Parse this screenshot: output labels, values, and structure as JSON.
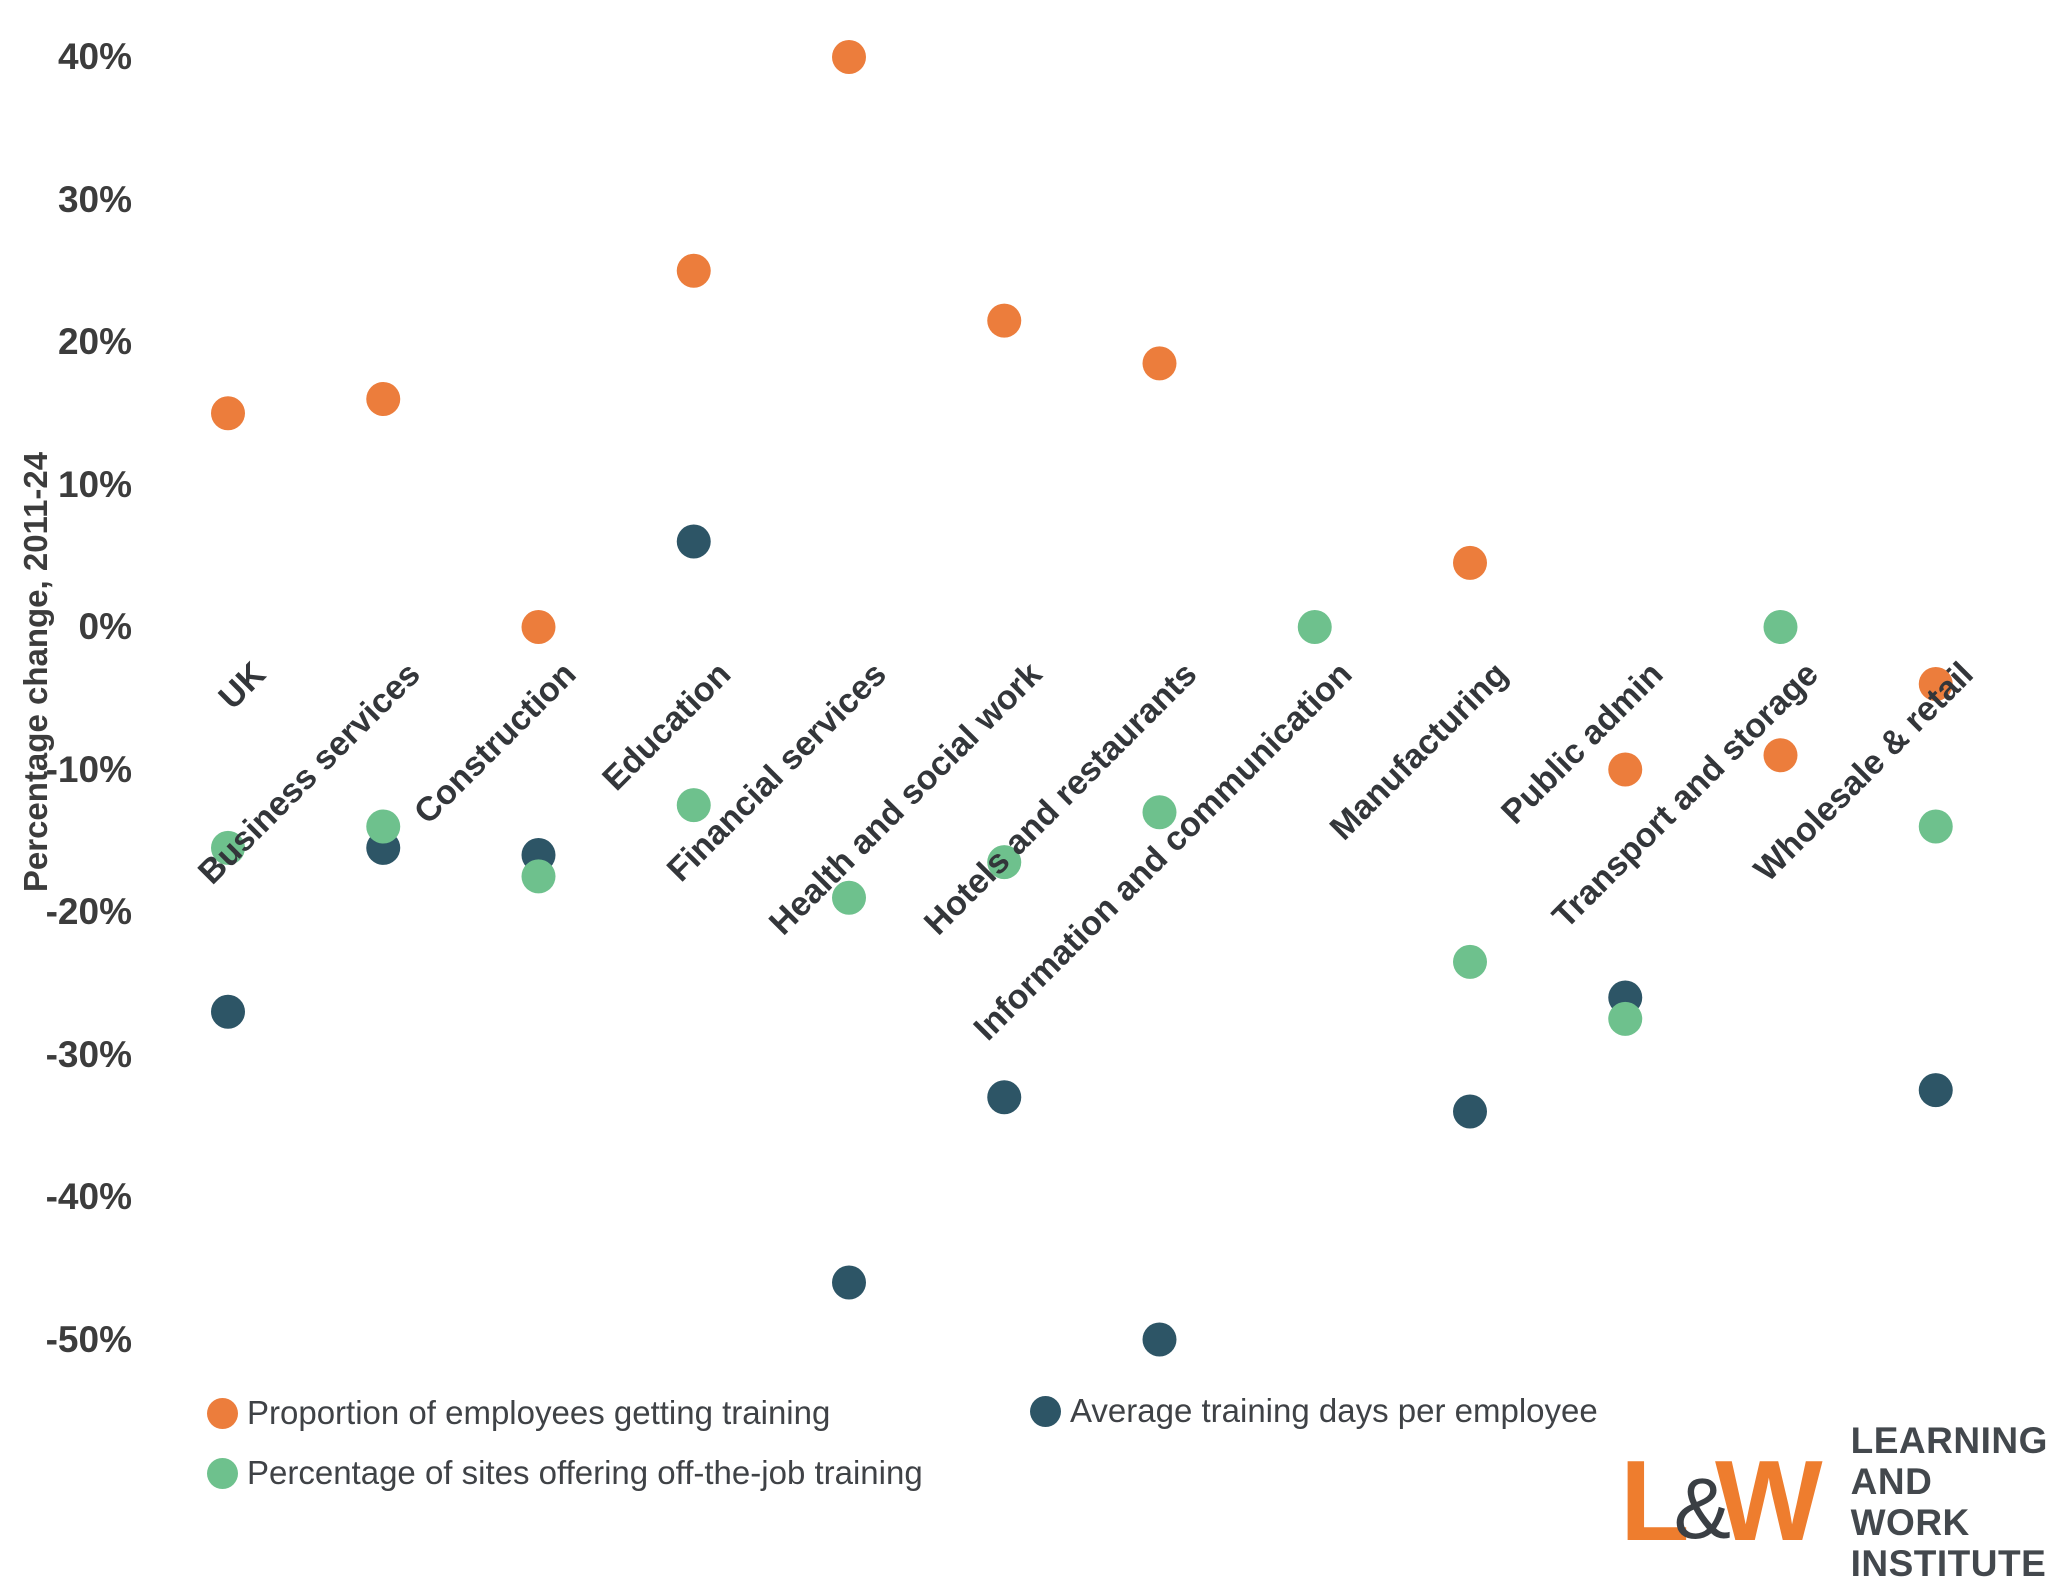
{
  "y_axis": {
    "title": "Percentage change, 2011-24",
    "tick_suffix": "%"
  },
  "legend": {
    "items": [
      {
        "label": "Proportion of employees getting training"
      },
      {
        "label": "Average training days per employee"
      },
      {
        "label": "Percentage of sites offering off-the-job training"
      }
    ]
  },
  "logo": {
    "letter_l": "L",
    "ampersand": "&",
    "letter_w": "W",
    "line1": "LEARNING AND",
    "line2": "WORK INSTITUTE"
  },
  "chart_data": {
    "type": "scatter",
    "title": "",
    "xlabel": "",
    "ylabel": "Percentage change, 2011-24",
    "grid": false,
    "legend_position": "bottom",
    "y_ticks": [
      40,
      30,
      20,
      10,
      0,
      -10,
      -20,
      -30,
      -40,
      -50
    ],
    "ylim": [
      -54,
      43
    ],
    "tick_suffix": "%",
    "categories": [
      "UK",
      "Business services",
      "Construction",
      "Education",
      "Financial services",
      "Health and social work",
      "Hotels and restaurants",
      "Information and communication",
      "Manufacturing",
      "Public admin",
      "Transport and storage",
      "Wholesale & retail"
    ],
    "series": [
      {
        "name": "Proportion of employees getting training",
        "color": "#EC7D3C",
        "values": [
          15,
          16,
          0,
          25,
          40,
          21.5,
          18.5,
          null,
          4.5,
          -10,
          -9,
          -4
        ]
      },
      {
        "name": "Average training days per employee",
        "color": "#2D5566",
        "values": [
          -27,
          -15.5,
          -16,
          6,
          -46,
          -33,
          -50,
          null,
          -34,
          -26,
          null,
          -32.5
        ]
      },
      {
        "name": "Percentage of sites offering off-the-job training",
        "color": "#6EC18D",
        "values": [
          -15.5,
          -14,
          -17.5,
          -12.5,
          -19,
          -16.5,
          -13,
          0,
          -23.5,
          -27.5,
          0,
          -14
        ]
      }
    ]
  }
}
